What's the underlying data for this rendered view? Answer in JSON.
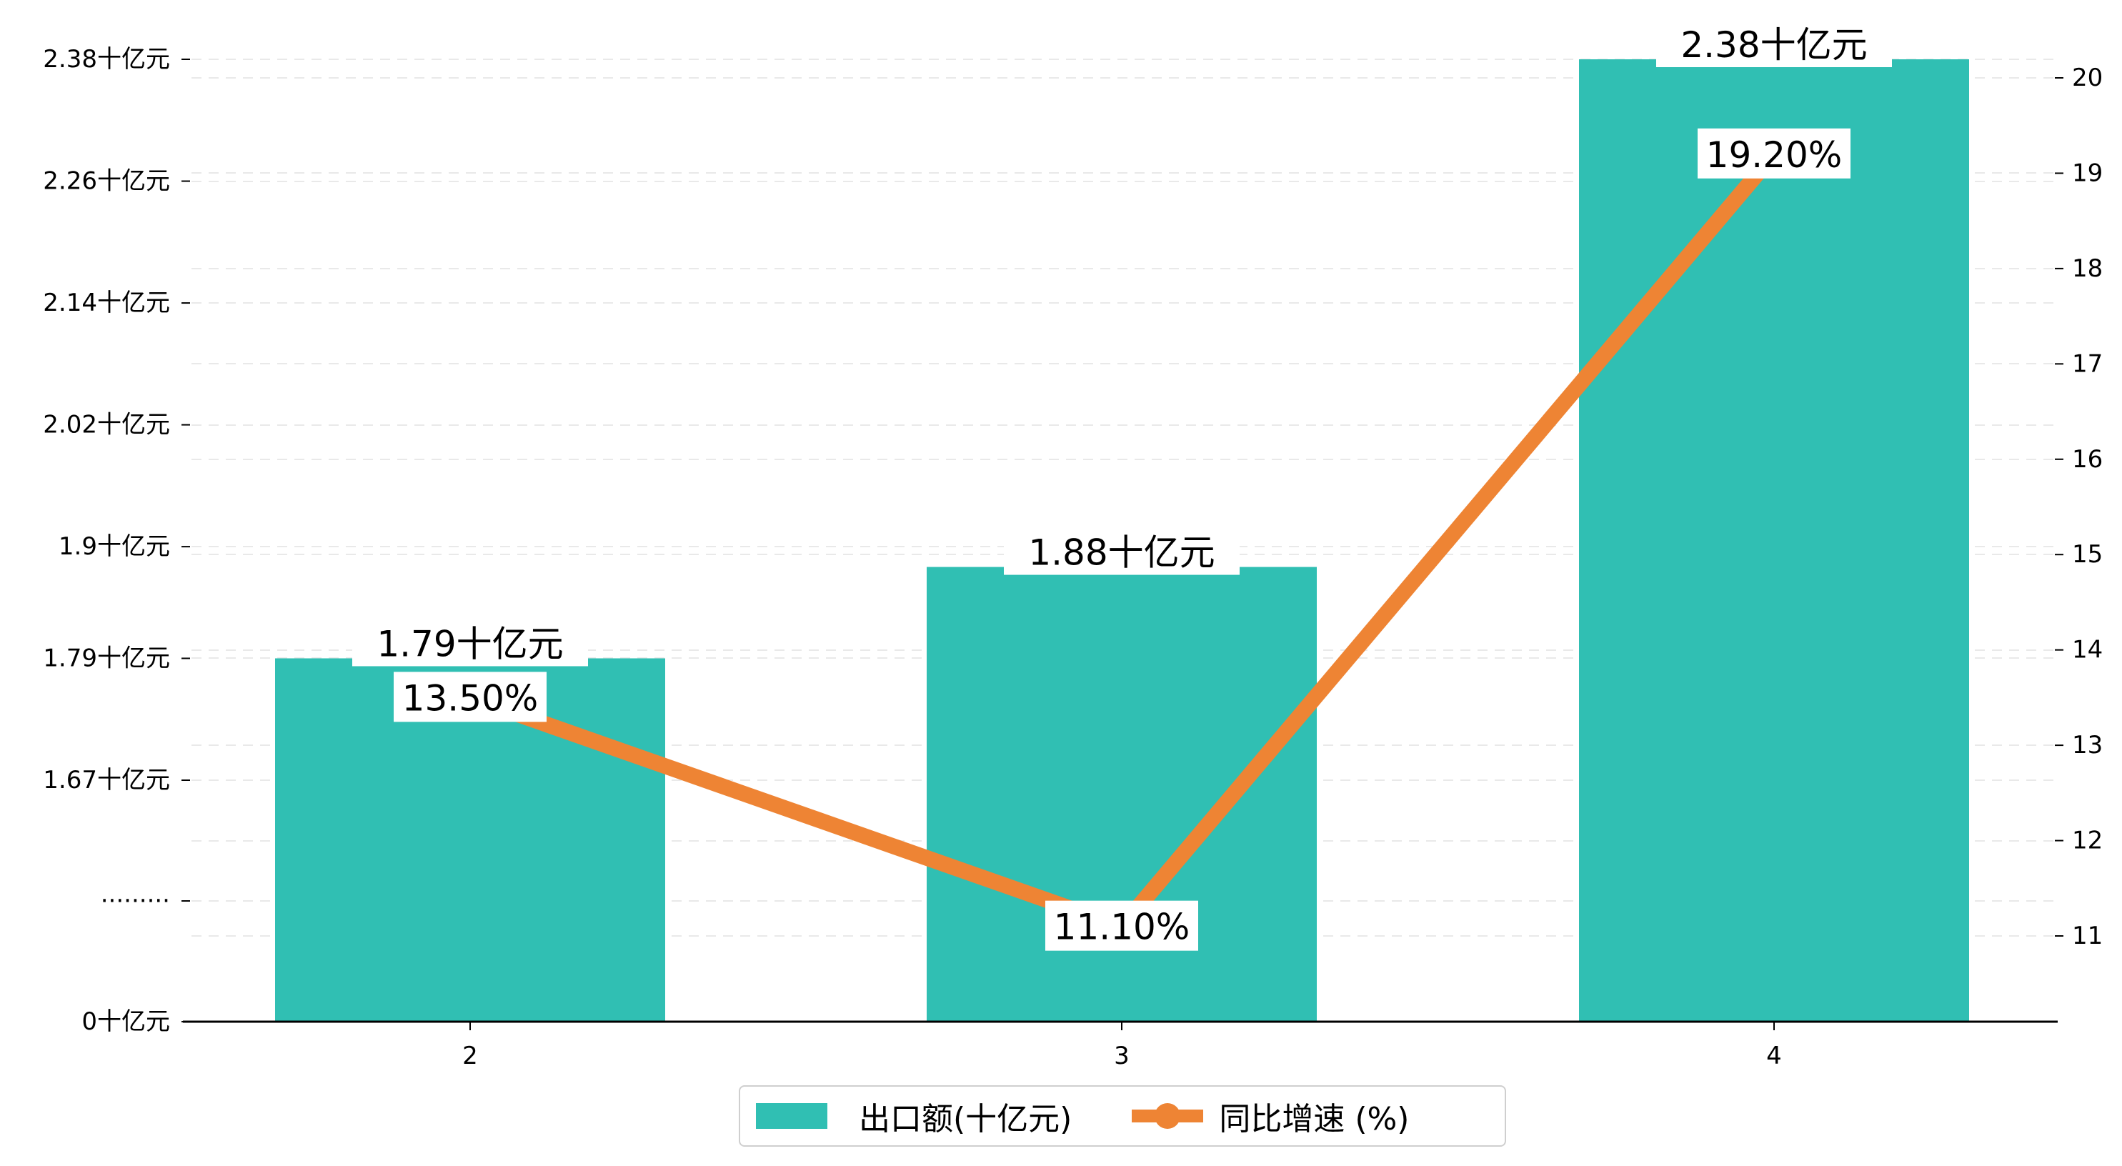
{
  "chart_data": {
    "type": "bar+line",
    "categories": [
      "2",
      "3",
      "4"
    ],
    "series": [
      {
        "name": "出口额(十亿元)",
        "kind": "bar",
        "axis": "left",
        "values": [
          1.79,
          1.88,
          2.38
        ],
        "labels": [
          "1.79十亿元",
          "1.88十亿元",
          "2.38十亿元"
        ]
      },
      {
        "name": "同比增速 (%)",
        "kind": "line",
        "axis": "right",
        "values": [
          13.5,
          11.1,
          19.2
        ],
        "labels": [
          "13.50%",
          "11.10%",
          "19.20%"
        ]
      }
    ],
    "left_axis": {
      "broken": true,
      "tick_labels": [
        "0十亿元",
        "·········",
        "1.67十亿元",
        "1.79十亿元",
        "1.9十亿元",
        "2.02十亿元",
        "2.14十亿元",
        "2.26十亿元",
        "2.38十亿元"
      ],
      "range": [
        1.55,
        2.38
      ]
    },
    "right_axis": {
      "ticks": [
        11,
        12,
        13,
        14,
        15,
        16,
        17,
        18,
        19,
        20
      ],
      "range": [
        10.0,
        20.2
      ]
    },
    "grid": "horizontal-dashed",
    "legend_position": "bottom-center",
    "colors": {
      "bar": "#30bfb3",
      "line": "#ee8434"
    }
  }
}
